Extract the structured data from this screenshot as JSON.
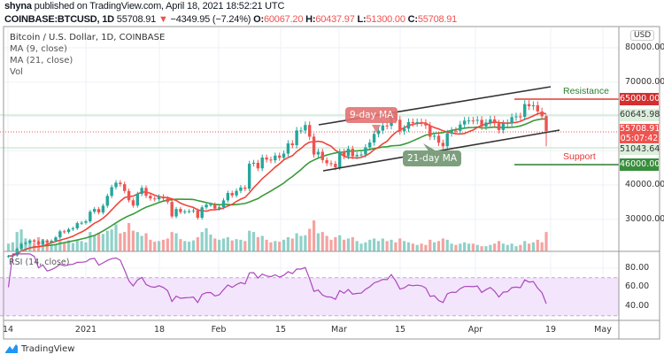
{
  "header": {
    "author": "shyna",
    "published_text": "published on TradingView.com, April 18, 2021 18:52:21 UTC",
    "symbol": "COINBASE:BTCUSD, 1D",
    "last": "55708.91",
    "change": "−4349.95 (−7.24%)",
    "o_label": "O:",
    "o": "60067.20",
    "h_label": "H:",
    "h": "60437.97",
    "l_label": "L:",
    "l": "51300.00",
    "c_label": "C:",
    "c": "55708.91"
  },
  "legend": {
    "title": "Bitcoin / U.S. Dollar, 1D, COINBASE",
    "ma9": "MA (9, close)",
    "ma21": "MA (21, close)",
    "vol": "Vol"
  },
  "price_axis": {
    "currency": "USD",
    "ticks": [
      "80000.00",
      "70000.00",
      "40000.00",
      "30000.00"
    ],
    "tags": {
      "resistance": "65000.00",
      "upper": "60645.98",
      "last": "55708.91",
      "countdown": "05:07:42",
      "lower": "51043.64",
      "support": "46000.00"
    }
  },
  "annotations": {
    "resistance": "Resistance",
    "support": "Support",
    "ma9": "9-day MA",
    "ma21": "21-day MA"
  },
  "rsi": {
    "title": "RSI (14, close)",
    "ticks": [
      "80.00",
      "60.00",
      "40.00"
    ]
  },
  "date_axis": [
    "14",
    "2021",
    "18",
    "Feb",
    "15",
    "Mar",
    "15",
    "Apr",
    "19",
    "May"
  ],
  "brand": "TradingView",
  "colors": {
    "up": "#26a69a",
    "down": "#ef5350",
    "ma9": "#f0443a",
    "ma21": "#3a9a3a",
    "rsi": "#9c27b0",
    "rsi_band": "#f3e5fc"
  },
  "chart_data": {
    "type": "candlestick",
    "start_date": "2020-12-14",
    "end_date": "2021-04-18",
    "ylim": [
      20000,
      85000
    ],
    "close": [
      19270,
      19440,
      21380,
      22850,
      23130,
      23860,
      23480,
      22740,
      23820,
      23250,
      23730,
      24710,
      26490,
      26280,
      27080,
      27360,
      28880,
      28990,
      29390,
      32200,
      33000,
      31990,
      33950,
      36820,
      39370,
      40670,
      40240,
      38240,
      35540,
      34010,
      37390,
      39150,
      36830,
      36070,
      35820,
      36630,
      36070,
      35050,
      30830,
      33010,
      32090,
      32280,
      32370,
      32570,
      30430,
      33470,
      34270,
      34300,
      33110,
      33520,
      35510,
      37670,
      36950,
      38290,
      39260,
      38900,
      46200,
      46480,
      44840,
      48000,
      47410,
      47190,
      48580,
      47930,
      49150,
      52120,
      51600,
      55900,
      55900,
      57490,
      54090,
      48890,
      49680,
      47260,
      46340,
      46190,
      45130,
      49630,
      48380,
      50540,
      48370,
      48760,
      48880,
      50970,
      52380,
      54880,
      55860,
      57330,
      57250,
      61260,
      59040,
      55640,
      56430,
      58350,
      58030,
      58340,
      58130,
      57350,
      54080,
      54340,
      52300,
      51300,
      55070,
      55880,
      55780,
      57630,
      58760,
      58800,
      58730,
      58990,
      57060,
      58200,
      59130,
      57990,
      56030,
      57900,
      58090,
      59770,
      60000,
      59860,
      63580,
      62960,
      63250,
      61450,
      60060,
      55708.91
    ],
    "last_candle": {
      "open": 60067.2,
      "high": 60437.97,
      "low": 51300.0,
      "close": 55708.91
    },
    "volume": [
      12,
      14,
      30,
      34,
      20,
      15,
      13,
      22,
      19,
      17,
      11,
      10,
      18,
      14,
      17,
      13,
      18,
      16,
      14,
      30,
      25,
      29,
      27,
      32,
      34,
      42,
      28,
      30,
      44,
      32,
      30,
      24,
      28,
      18,
      15,
      16,
      18,
      20,
      30,
      28,
      19,
      16,
      15,
      17,
      22,
      30,
      36,
      26,
      20,
      18,
      20,
      22,
      17,
      19,
      18,
      16,
      32,
      30,
      22,
      24,
      18,
      14,
      16,
      15,
      18,
      22,
      20,
      28,
      24,
      25,
      35,
      48,
      28,
      30,
      24,
      18,
      22,
      25,
      18,
      20,
      22,
      16,
      12,
      14,
      18,
      20,
      16,
      20,
      16,
      18,
      14,
      20,
      16,
      14,
      12,
      10,
      12,
      10,
      18,
      14,
      16,
      20,
      18,
      12,
      10,
      12,
      14,
      12,
      12,
      10,
      8,
      8,
      10,
      12,
      16,
      12,
      10,
      12,
      8,
      10,
      16,
      12,
      14,
      18,
      14,
      30
    ]
  }
}
